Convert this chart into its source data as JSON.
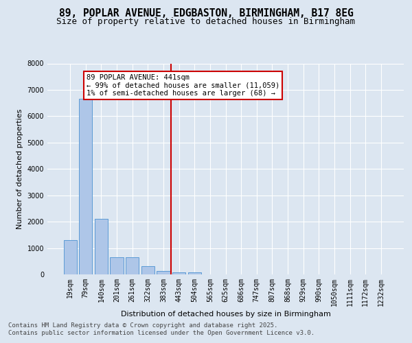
{
  "title_line1": "89, POPLAR AVENUE, EDGBASTON, BIRMINGHAM, B17 8EG",
  "title_line2": "Size of property relative to detached houses in Birmingham",
  "xlabel": "Distribution of detached houses by size in Birmingham",
  "ylabel": "Number of detached properties",
  "categories": [
    "19sqm",
    "79sqm",
    "140sqm",
    "201sqm",
    "261sqm",
    "322sqm",
    "383sqm",
    "443sqm",
    "504sqm",
    "565sqm",
    "625sqm",
    "686sqm",
    "747sqm",
    "807sqm",
    "868sqm",
    "929sqm",
    "990sqm",
    "1050sqm",
    "1111sqm",
    "1172sqm",
    "1232sqm"
  ],
  "values": [
    1300,
    6650,
    2100,
    650,
    650,
    300,
    130,
    80,
    80,
    0,
    0,
    0,
    0,
    0,
    0,
    0,
    0,
    0,
    0,
    0,
    0
  ],
  "bar_color": "#aec6e8",
  "bar_edge_color": "#5b9bd5",
  "vline_index": 7,
  "vline_color": "#cc0000",
  "annotation_text": "89 POPLAR AVENUE: 441sqm\n← 99% of detached houses are smaller (11,059)\n1% of semi-detached houses are larger (68) →",
  "annotation_box_color": "#cc0000",
  "ylim": [
    0,
    8000
  ],
  "yticks": [
    0,
    1000,
    2000,
    3000,
    4000,
    5000,
    6000,
    7000,
    8000
  ],
  "bg_color": "#dce6f1",
  "plot_bg_color": "#dce6f1",
  "grid_color": "#ffffff",
  "footer_line1": "Contains HM Land Registry data © Crown copyright and database right 2025.",
  "footer_line2": "Contains public sector information licensed under the Open Government Licence v3.0.",
  "title1_fontsize": 10.5,
  "title2_fontsize": 9,
  "axis_label_fontsize": 8,
  "tick_fontsize": 7,
  "footer_fontsize": 6.5,
  "annot_fontsize": 7.5
}
